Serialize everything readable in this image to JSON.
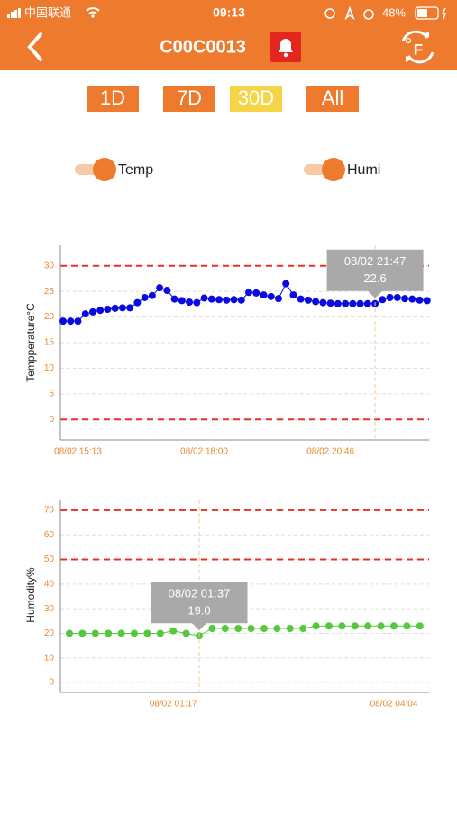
{
  "status_bar": {
    "carrier": "中国联通",
    "time": "09:13",
    "battery": "48%"
  },
  "header": {
    "title": "C00C0013",
    "unit_icon": "F"
  },
  "range_buttons": [
    "1D",
    "7D",
    "30D",
    "All"
  ],
  "selected_range": "30D",
  "chart_data": [
    {
      "type": "line",
      "y_label": "Tempperature°C",
      "categories": [
        null,
        null,
        "08/02 15:13",
        null,
        null,
        null,
        null,
        null,
        null,
        null,
        null,
        null,
        null,
        null,
        null,
        null,
        null,
        null,
        null,
        "08/02 18:00",
        null,
        null,
        null,
        null,
        null,
        null,
        null,
        null,
        null,
        null,
        null,
        null,
        null,
        null,
        null,
        null,
        "08/02 20:46",
        null,
        null,
        null,
        null,
        null,
        null,
        null,
        null,
        null,
        null,
        null,
        null,
        null
      ],
      "series": [
        {
          "name": "Temp",
          "color": "#0a0ae0",
          "values": [
            19.2,
            19.2,
            19.2,
            20.6,
            21.0,
            21.3,
            21.5,
            21.7,
            21.8,
            21.8,
            22.8,
            23.8,
            24.2,
            25.7,
            25.2,
            23.5,
            23.2,
            22.9,
            22.8,
            23.7,
            23.5,
            23.4,
            23.3,
            23.4,
            23.3,
            24.8,
            24.7,
            24.3,
            24.0,
            23.6,
            26.5,
            24.3,
            23.5,
            23.3,
            23.0,
            22.8,
            22.7,
            22.6,
            22.6,
            22.6,
            22.6,
            22.6,
            22.6,
            23.4,
            23.8,
            23.8,
            23.6,
            23.5,
            23.3,
            23.2
          ]
        }
      ],
      "ylim": [
        -4,
        34
      ],
      "yticks": [
        0,
        5,
        10,
        15,
        20,
        25,
        30
      ],
      "grid": true,
      "limit_lines": [
        30,
        0
      ],
      "limit_color": "#e8302a",
      "tooltip": {
        "title": "08/02 21:47",
        "text": "22.6"
      }
    },
    {
      "type": "line",
      "y_label": "Humodity%",
      "categories": [
        null,
        null,
        null,
        null,
        null,
        null,
        null,
        null,
        "08/02 01:17",
        null,
        null,
        null,
        null,
        null,
        null,
        null,
        null,
        null,
        null,
        null,
        null,
        null,
        null,
        null,
        null,
        "08/02 04:04",
        null,
        null
      ],
      "series": [
        {
          "name": "Humi",
          "color": "#55c83c",
          "values": [
            20,
            20,
            20,
            20,
            20,
            20,
            20,
            20,
            21,
            20,
            19,
            22,
            22,
            22,
            22,
            22,
            22,
            22,
            22,
            23,
            23,
            23,
            23,
            23,
            23,
            23,
            23,
            23
          ]
        }
      ],
      "ylim": [
        -4,
        74
      ],
      "yticks": [
        0,
        10,
        20,
        30,
        40,
        50,
        60,
        70
      ],
      "grid": true,
      "limit_lines": [
        70,
        50
      ],
      "limit_color": "#e8302a",
      "tooltip": {
        "title": "08/02 01:37",
        "text": "19.0"
      }
    }
  ]
}
